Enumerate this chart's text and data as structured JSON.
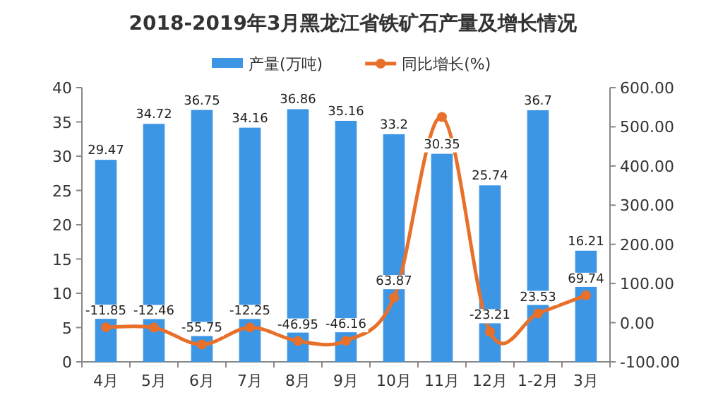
{
  "chart_data": {
    "type": "bar",
    "title": "2018-2019年3月黑龙江省铁矿石产量及增长情况",
    "categories": [
      "4月",
      "5月",
      "6月",
      "7月",
      "8月",
      "9月",
      "10月",
      "11月",
      "12月",
      "1-2月",
      "3月"
    ],
    "series": [
      {
        "name": "产量(万吨)",
        "color": "#3d96e4",
        "values": [
          29.47,
          34.72,
          36.75,
          34.16,
          36.86,
          35.16,
          33.2,
          30.35,
          25.74,
          36.7,
          16.21
        ],
        "data_labels": true
      },
      {
        "name": "同比增长(%)",
        "type": "line",
        "axis": "y2",
        "color": "#e8702a",
        "marker": "circle",
        "values": [
          -11.85,
          -12.46,
          -55.75,
          -12.25,
          -46.95,
          -46.16,
          63.87,
          525,
          -23.21,
          23.53,
          69.74
        ],
        "value_labels": [
          "-11.85",
          "-12.46",
          "-55.75",
          "-12.25",
          "-46.95",
          "-46.16",
          "63.87",
          null,
          "-23.21",
          "23.53",
          "69.74"
        ]
      }
    ],
    "ylim": [
      0,
      40
    ],
    "yticks": [
      0,
      5,
      10,
      15,
      20,
      25,
      30,
      35,
      40
    ],
    "y2lim": [
      -100,
      600
    ],
    "y2ticks": [
      {
        "value": -100,
        "label": "-100.00"
      },
      {
        "value": 0,
        "label": "0.00"
      },
      {
        "value": 100,
        "label": "100.00"
      },
      {
        "value": 200,
        "label": "200.00"
      },
      {
        "value": 300,
        "label": "300.00"
      },
      {
        "value": 400,
        "label": "400.00"
      },
      {
        "value": 500,
        "label": "500.00"
      },
      {
        "value": 600,
        "label": "600.00"
      }
    ],
    "legend": "top",
    "grid": false
  }
}
